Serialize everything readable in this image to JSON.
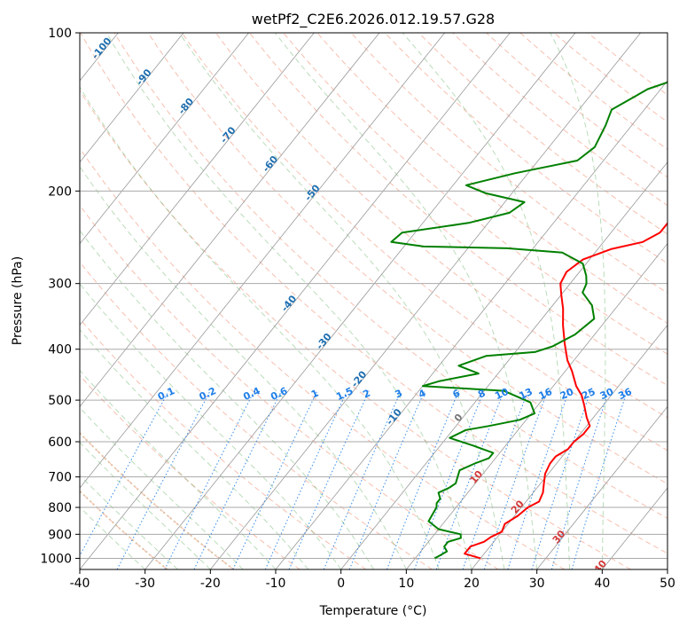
{
  "chart_data": {
    "type": "line",
    "title": "wetPf2_C2E6.2026.012.19.57.G28",
    "xlabel": "Temperature (°C)",
    "ylabel": "Pressure (hPa)",
    "xlim": [
      -40,
      50
    ],
    "ylim": [
      1050,
      100
    ],
    "y_scale": "log",
    "grid": true,
    "x_ticks": [
      -40,
      -30,
      -20,
      -10,
      0,
      10,
      20,
      30,
      40,
      50
    ],
    "y_ticks": [
      100,
      200,
      300,
      400,
      500,
      600,
      700,
      800,
      900,
      1000
    ],
    "isotherm_labels": [
      "-100",
      "-90",
      "-80",
      "-70",
      "-60",
      "-50",
      "-40",
      "-30",
      "-20",
      "-10",
      "0",
      "10",
      "20",
      "30",
      "40"
    ],
    "mixing_ratio_labels": [
      "0.1",
      "0.2",
      "0.4",
      "0.6",
      "1",
      "1.5",
      "2",
      "3",
      "4",
      "6",
      "8",
      "10",
      "13",
      "16",
      "20",
      "25",
      "30",
      "36"
    ],
    "series": [
      {
        "color": "#ff0000",
        "points": [
          [
            20.0,
            1000
          ],
          [
            17.0,
            980
          ],
          [
            17.0,
            950
          ],
          [
            18.5,
            930
          ],
          [
            19.0,
            910
          ],
          [
            20.0,
            890
          ],
          [
            19.5,
            860
          ],
          [
            20.5,
            830
          ],
          [
            21.0,
            800
          ],
          [
            22.0,
            780
          ],
          [
            21.5,
            750
          ],
          [
            20.5,
            720
          ],
          [
            19.5,
            690
          ],
          [
            19.0,
            660
          ],
          [
            19.0,
            640
          ],
          [
            20.0,
            620
          ],
          [
            20.0,
            600
          ],
          [
            20.5,
            580
          ],
          [
            20.5,
            560
          ],
          [
            19.0,
            540
          ],
          [
            17.0,
            510
          ],
          [
            15.5,
            490
          ],
          [
            13.5,
            470
          ],
          [
            11.0,
            440
          ],
          [
            9.0,
            420
          ],
          [
            6.5,
            390
          ],
          [
            4.0,
            360
          ],
          [
            2.0,
            335
          ],
          [
            0.0,
            315
          ],
          [
            -1.5,
            300
          ],
          [
            -2.0,
            285
          ],
          [
            -1.0,
            270
          ],
          [
            2.0,
            258
          ],
          [
            6.0,
            250
          ],
          [
            7.5,
            240
          ],
          [
            7.5,
            225
          ],
          [
            8.0,
            215
          ],
          [
            7.5,
            200
          ],
          [
            6.0,
            185
          ],
          [
            6.5,
            170
          ],
          [
            7.5,
            150
          ],
          [
            8.5,
            135
          ],
          [
            9.0,
            125
          ],
          [
            8.5,
            115
          ],
          [
            8.0,
            108
          ],
          [
            7.5,
            100
          ]
        ]
      },
      {
        "color": "#008000",
        "points": [
          [
            13.0,
            1000
          ],
          [
            13.5,
            985
          ],
          [
            14.0,
            970
          ],
          [
            13.0,
            950
          ],
          [
            13.0,
            930
          ],
          [
            14.5,
            915
          ],
          [
            14.0,
            900
          ],
          [
            10.0,
            880
          ],
          [
            7.5,
            850
          ],
          [
            7.0,
            800
          ],
          [
            6.5,
            785
          ],
          [
            6.5,
            770
          ],
          [
            5.5,
            750
          ],
          [
            6.5,
            735
          ],
          [
            7.0,
            720
          ],
          [
            6.5,
            700
          ],
          [
            6.0,
            680
          ],
          [
            7.5,
            660
          ],
          [
            9.0,
            645
          ],
          [
            9.0,
            630
          ],
          [
            5.0,
            610
          ],
          [
            0.5,
            590
          ],
          [
            2.0,
            570
          ],
          [
            5.0,
            560
          ],
          [
            9.0,
            545
          ],
          [
            10.5,
            530
          ],
          [
            8.5,
            505
          ],
          [
            3.0,
            480
          ],
          [
            -10.0,
            470
          ],
          [
            -8.0,
            460
          ],
          [
            -3.0,
            445
          ],
          [
            -7.0,
            430
          ],
          [
            -4.0,
            412
          ],
          [
            3.0,
            405
          ],
          [
            5.0,
            395
          ],
          [
            7.0,
            375
          ],
          [
            8.0,
            350
          ],
          [
            6.0,
            330
          ],
          [
            3.0,
            312
          ],
          [
            2.5,
            300
          ],
          [
            1.5,
            290
          ],
          [
            -0.5,
            275
          ],
          [
            -5.0,
            262
          ],
          [
            -14.0,
            257
          ],
          [
            -27.0,
            255
          ],
          [
            -32.5,
            250
          ],
          [
            -32.0,
            240
          ],
          [
            -23.0,
            230
          ],
          [
            -18.0,
            220
          ],
          [
            -17.0,
            210
          ],
          [
            -24.0,
            202
          ],
          [
            -28.0,
            195
          ],
          [
            -22.0,
            185
          ],
          [
            -14.0,
            175
          ],
          [
            -13.0,
            165
          ],
          [
            -14.0,
            150
          ],
          [
            -15.0,
            140
          ],
          [
            -13.0,
            132
          ],
          [
            -12.0,
            128
          ],
          [
            -6.0,
            118
          ],
          [
            -3.0,
            112
          ],
          [
            0.0,
            105
          ],
          [
            2.0,
            100
          ]
        ]
      }
    ]
  }
}
